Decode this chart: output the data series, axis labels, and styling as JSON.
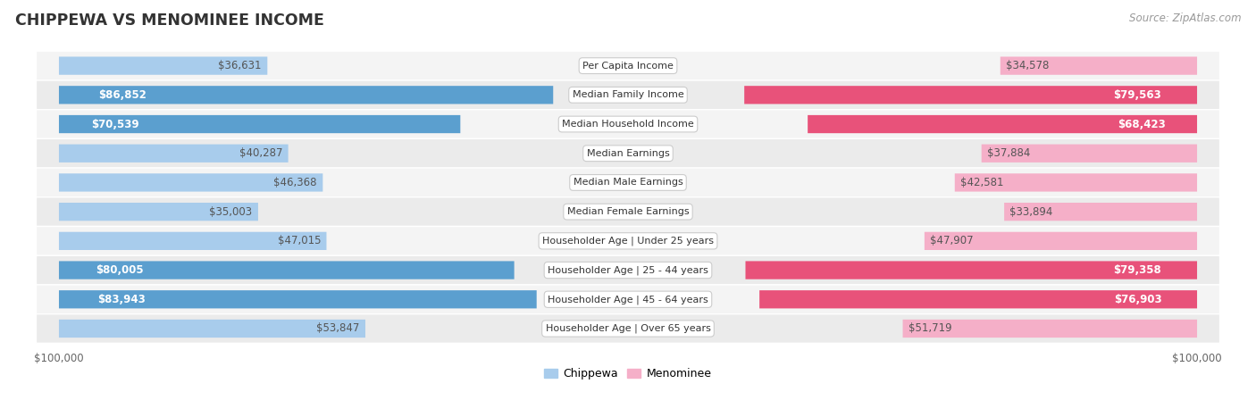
{
  "title": "CHIPPEWA VS MENOMINEE INCOME",
  "source": "Source: ZipAtlas.com",
  "categories": [
    "Per Capita Income",
    "Median Family Income",
    "Median Household Income",
    "Median Earnings",
    "Median Male Earnings",
    "Median Female Earnings",
    "Householder Age | Under 25 years",
    "Householder Age | 25 - 44 years",
    "Householder Age | 45 - 64 years",
    "Householder Age | Over 65 years"
  ],
  "chippewa": [
    36631,
    86852,
    70539,
    40287,
    46368,
    35003,
    47015,
    80005,
    83943,
    53847
  ],
  "menominee": [
    34578,
    79563,
    68423,
    37884,
    42581,
    33894,
    47907,
    79358,
    76903,
    51719
  ],
  "max_val": 100000,
  "chippewa_color_light": "#a8ccec",
  "chippewa_color_dark": "#5b9fcf",
  "menominee_color_light": "#f5afc8",
  "menominee_color_dark": "#e8527a",
  "bg_odd": "#f4f4f4",
  "bg_even": "#ebebeb",
  "legend_chippewa": "Chippewa",
  "legend_menominee": "Menominee",
  "threshold": 60000,
  "label_fontsize": 8.5,
  "cat_fontsize": 8.0
}
